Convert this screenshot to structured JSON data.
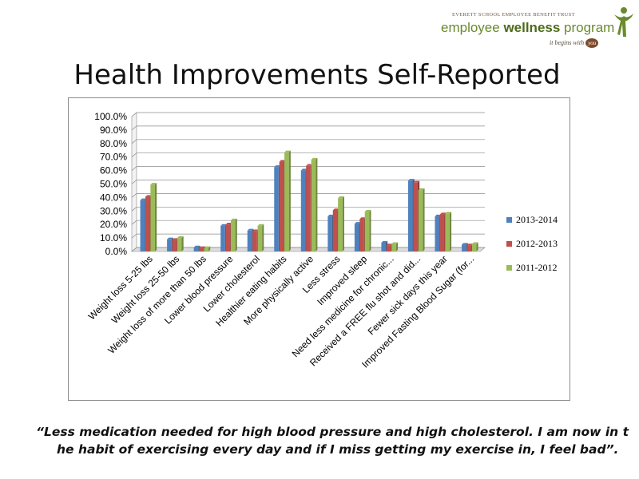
{
  "logo": {
    "trust_text": "EVERETT SCHOOL EMPLOYEE BENEFIT TRUST",
    "name_plain": "employee ",
    "name_bold": "wellness",
    "name_plain2": " program",
    "tagline": "it begins with",
    "tagline_badge": "you",
    "colors": {
      "green": "#6a8a2e",
      "brown": "#7b4a2a"
    }
  },
  "title": "Health Improvements Self-Reported",
  "chart_data": {
    "type": "bar",
    "categories": [
      "Weight loss 5-25 lbs",
      "Weight loss 25-50 lbs",
      "Weight loss of more than 50 lbs",
      "Lower blood pressure",
      "Lower cholesterol",
      "Healthier eating habits",
      "More physically active",
      "Less stress",
      "Improved sleep",
      "Need less medicine for chronic...",
      "Received a FREE flu shot and did...",
      "Fewer sick days this year",
      "Improved Fasting Blood Sugar (for..."
    ],
    "series": [
      {
        "name": "2013-2014",
        "color": "#4f81bd",
        "values": [
          38,
          9,
          3,
          19,
          15.5,
          62.5,
          60,
          26,
          20.5,
          6.5,
          52.5,
          26,
          5
        ]
      },
      {
        "name": "2012-2013",
        "color": "#c0504d",
        "values": [
          40.5,
          8.5,
          2.5,
          20,
          15,
          66.5,
          63.5,
          30.5,
          24,
          4.5,
          51,
          27.5,
          4.5
        ]
      },
      {
        "name": "2011-2012",
        "color": "#9bbb59",
        "values": [
          49.5,
          10,
          2.5,
          23,
          19,
          73.5,
          68,
          39.5,
          29.5,
          5.5,
          45.5,
          28,
          5.5
        ]
      }
    ],
    "ylim": [
      0,
      100
    ],
    "yticks": [
      "0.0%",
      "10.0%",
      "20.0%",
      "30.0%",
      "40.0%",
      "50.0%",
      "60.0%",
      "70.0%",
      "80.0%",
      "90.0%",
      "100.0%"
    ],
    "grid": true,
    "legend_position": "right"
  },
  "quote": {
    "line1": "“Less medication needed for high blood pressure and high cholesterol. I am now in t",
    "line2": "he habit of exercising every day and if I miss getting my exercise in, I feel bad”."
  }
}
